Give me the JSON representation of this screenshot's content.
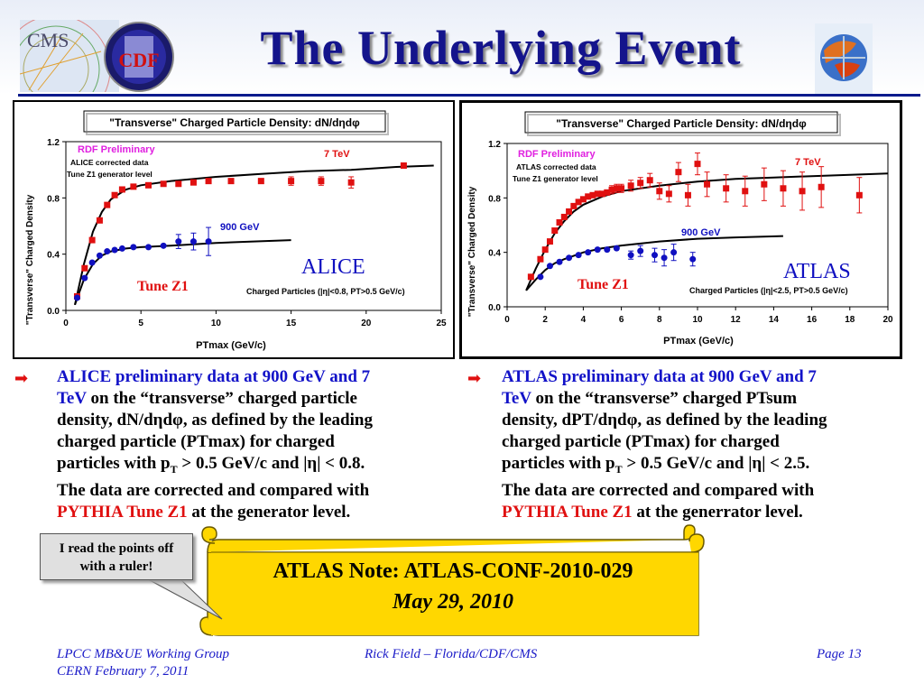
{
  "slide": {
    "title": "The Underlying Event",
    "logos": [
      "CMS",
      "CDF"
    ]
  },
  "chart_data": [
    {
      "type": "scatter",
      "title": "\"Transverse\" Charged Particle Density: dN/dηdφ",
      "xlabel": "PTmax  (GeV/c)",
      "ylabel": "\"Transverse\" Charged Density",
      "xlim": [
        0,
        25
      ],
      "ylim": [
        0,
        1.2
      ],
      "xticks": [
        "0",
        "5",
        "10",
        "15",
        "20",
        "25"
      ],
      "yticks": [
        "0.0",
        "0.4",
        "0.8",
        "1.2"
      ],
      "annotations": {
        "rdf": "RDF Preliminary",
        "corrected": "ALICE corrected data",
        "tune_level": "Tune Z1 generator level",
        "experiment": "ALICE",
        "tune": "Tune Z1",
        "cuts": "Charged Particles (|η|<0.8, PT>0.5 GeV/c)"
      },
      "series": [
        {
          "name": "7 TeV",
          "marker": "square",
          "color": "#e01010",
          "x": [
            0.75,
            1.25,
            1.75,
            2.25,
            2.75,
            3.25,
            3.75,
            4.5,
            5.5,
            6.5,
            7.5,
            8.5,
            9.5,
            11,
            13,
            15,
            17,
            19,
            22.5
          ],
          "y": [
            0.1,
            0.3,
            0.5,
            0.64,
            0.75,
            0.82,
            0.86,
            0.88,
            0.89,
            0.9,
            0.9,
            0.91,
            0.92,
            0.92,
            0.92,
            0.92,
            0.92,
            0.91,
            1.03
          ],
          "err": [
            0,
            0,
            0,
            0,
            0,
            0,
            0,
            0,
            0,
            0,
            0,
            0,
            0,
            0,
            0,
            0.03,
            0.03,
            0.04,
            0
          ]
        },
        {
          "name": "900 GeV",
          "marker": "circle",
          "color": "#1010c0",
          "x": [
            0.75,
            1.25,
            1.75,
            2.25,
            2.75,
            3.25,
            3.75,
            4.5,
            5.5,
            6.5,
            7.5,
            8.5,
            9.5
          ],
          "y": [
            0.09,
            0.23,
            0.34,
            0.39,
            0.42,
            0.43,
            0.44,
            0.45,
            0.45,
            0.46,
            0.49,
            0.49,
            0.49
          ],
          "err": [
            0,
            0,
            0,
            0,
            0,
            0,
            0,
            0,
            0,
            0,
            0.05,
            0.06,
            0.1
          ]
        }
      ],
      "curves": [
        {
          "x": [
            0.6,
            1.2,
            1.8,
            2.4,
            3,
            4,
            5,
            7,
            10,
            13,
            16,
            19,
            22,
            24.5
          ],
          "y": [
            0.04,
            0.33,
            0.56,
            0.7,
            0.79,
            0.86,
            0.89,
            0.92,
            0.95,
            0.97,
            0.99,
            1.0,
            1.02,
            1.03
          ]
        },
        {
          "x": [
            0.6,
            1.2,
            1.8,
            2.4,
            3,
            4,
            5,
            7,
            10,
            12.5,
            15
          ],
          "y": [
            0.04,
            0.22,
            0.33,
            0.39,
            0.42,
            0.44,
            0.45,
            0.46,
            0.48,
            0.49,
            0.5
          ]
        }
      ]
    },
    {
      "type": "scatter",
      "title": "\"Transverse\" Charged Particle Density: dN/dηdφ",
      "xlabel": "PTmax  (GeV/c)",
      "ylabel": "\"Transverse\" Charged Density",
      "xlim": [
        0,
        20
      ],
      "ylim": [
        0,
        1.2
      ],
      "xticks": [
        "0",
        "2",
        "4",
        "6",
        "8",
        "10",
        "12",
        "14",
        "16",
        "18",
        "20"
      ],
      "yticks": [
        "0.0",
        "0.4",
        "0.8",
        "1.2"
      ],
      "annotations": {
        "rdf": "RDF Preliminary",
        "corrected": "ATLAS corrected data",
        "tune_level": "Tune Z1 generator level",
        "experiment": "ATLAS",
        "tune": "Tune Z1",
        "cuts": "Charged Particles (|η|<2.5, PT>0.5 GeV/c)"
      },
      "series": [
        {
          "name": "7 TeV",
          "marker": "square",
          "color": "#e01010",
          "x": [
            1.25,
            1.75,
            2.0,
            2.25,
            2.5,
            2.75,
            3.0,
            3.25,
            3.5,
            3.75,
            4.0,
            4.25,
            4.5,
            4.75,
            5.0,
            5.25,
            5.5,
            5.75,
            6.0,
            6.5,
            7.0,
            7.5,
            8.0,
            8.5,
            9.0,
            9.5,
            10.0,
            10.5,
            11.5,
            12.5,
            13.5,
            14.5,
            15.5,
            16.5,
            18.5
          ],
          "y": [
            0.22,
            0.35,
            0.42,
            0.48,
            0.56,
            0.62,
            0.66,
            0.7,
            0.74,
            0.77,
            0.79,
            0.81,
            0.82,
            0.83,
            0.83,
            0.84,
            0.86,
            0.87,
            0.87,
            0.89,
            0.91,
            0.93,
            0.85,
            0.83,
            0.99,
            0.82,
            1.05,
            0.9,
            0.87,
            0.85,
            0.9,
            0.87,
            0.85,
            0.88,
            0.82
          ],
          "err": [
            0,
            0,
            0,
            0,
            0,
            0,
            0,
            0,
            0,
            0,
            0,
            0,
            0,
            0,
            0,
            0,
            0.03,
            0.03,
            0.03,
            0.04,
            0.04,
            0.05,
            0.06,
            0.06,
            0.07,
            0.08,
            0.08,
            0.09,
            0.1,
            0.11,
            0.12,
            0.13,
            0.14,
            0.15,
            0.13
          ]
        },
        {
          "name": "900 GeV",
          "marker": "circle",
          "color": "#1010c0",
          "x": [
            1.75,
            2.25,
            2.75,
            3.25,
            3.75,
            4.25,
            4.75,
            5.25,
            5.75,
            6.5,
            7.0,
            7.75,
            8.25,
            8.75,
            9.75
          ],
          "y": [
            0.22,
            0.3,
            0.33,
            0.36,
            0.38,
            0.4,
            0.42,
            0.42,
            0.43,
            0.38,
            0.41,
            0.38,
            0.36,
            0.4,
            0.35
          ],
          "err": [
            0,
            0,
            0,
            0,
            0,
            0,
            0,
            0,
            0,
            0.03,
            0.04,
            0.05,
            0.06,
            0.06,
            0.05
          ]
        }
      ],
      "curves": [
        {
          "x": [
            1.0,
            1.5,
            2.0,
            2.5,
            3.0,
            3.5,
            4.0,
            5.0,
            6.0,
            8.0,
            10,
            12,
            14,
            16,
            18,
            20
          ],
          "y": [
            0.12,
            0.28,
            0.42,
            0.54,
            0.63,
            0.7,
            0.75,
            0.81,
            0.85,
            0.89,
            0.92,
            0.94,
            0.95,
            0.96,
            0.97,
            0.98
          ]
        },
        {
          "x": [
            1.0,
            1.5,
            2.0,
            2.5,
            3.0,
            4.0,
            5.0,
            6.0,
            8.0,
            10,
            12,
            14.5
          ],
          "y": [
            0.12,
            0.2,
            0.27,
            0.32,
            0.35,
            0.4,
            0.43,
            0.45,
            0.48,
            0.5,
            0.51,
            0.52
          ]
        }
      ]
    }
  ],
  "text": {
    "left": {
      "line1_blue": "ALICE preliminary data at  900 GeV and 7",
      "line2_blue": "TeV",
      "line2_rest": " on the “transverse” charged particle",
      "line3": "density, dN/dηdφ, as defined by the leading",
      "line4": "charged particle (PTmax) for charged",
      "line5a": "particles with p",
      "line5sub": "T",
      "line5b": " > 0.5 GeV/c and |η| < 0.8.",
      "line6": "The data are corrected and compared with",
      "line7_red": "PYTHIA Tune Z1",
      "line7_rest": " at the generator level."
    },
    "right": {
      "line1_blue": "ATLAS preliminary data at  900 GeV and 7",
      "line2_blue": "TeV",
      "line2_rest": " on the “transverse” charged PTsum",
      "line3": "density, dPT/dηdφ, as defined by the leading",
      "line4": "charged particle (PTmax) for charged",
      "line5a": "particles with p",
      "line5sub": "T",
      "line5b": " > 0.5 GeV/c and |η| < 2.5.",
      "line6": "The data are corrected and compared with",
      "line7_red": "PYTHIA Tune Z1",
      "line7_rest": " at the generrator level."
    }
  },
  "callout": {
    "line1": "I read the points off",
    "line2": "with a ruler!"
  },
  "scroll": {
    "line1": "ATLAS Note: ATLAS-CONF-2010-029",
    "line2": "May 29, 2010"
  },
  "footer": {
    "left1": "LPCC MB&UE Working Group",
    "left2": "CERN February 7, 2011",
    "center": "Rick Field – Florida/CDF/CMS",
    "right": "Page 13"
  },
  "colors": {
    "title": "#14148c",
    "accent_blue": "#1212c8",
    "accent_red": "#e01010",
    "scroll": "#ffd700"
  }
}
